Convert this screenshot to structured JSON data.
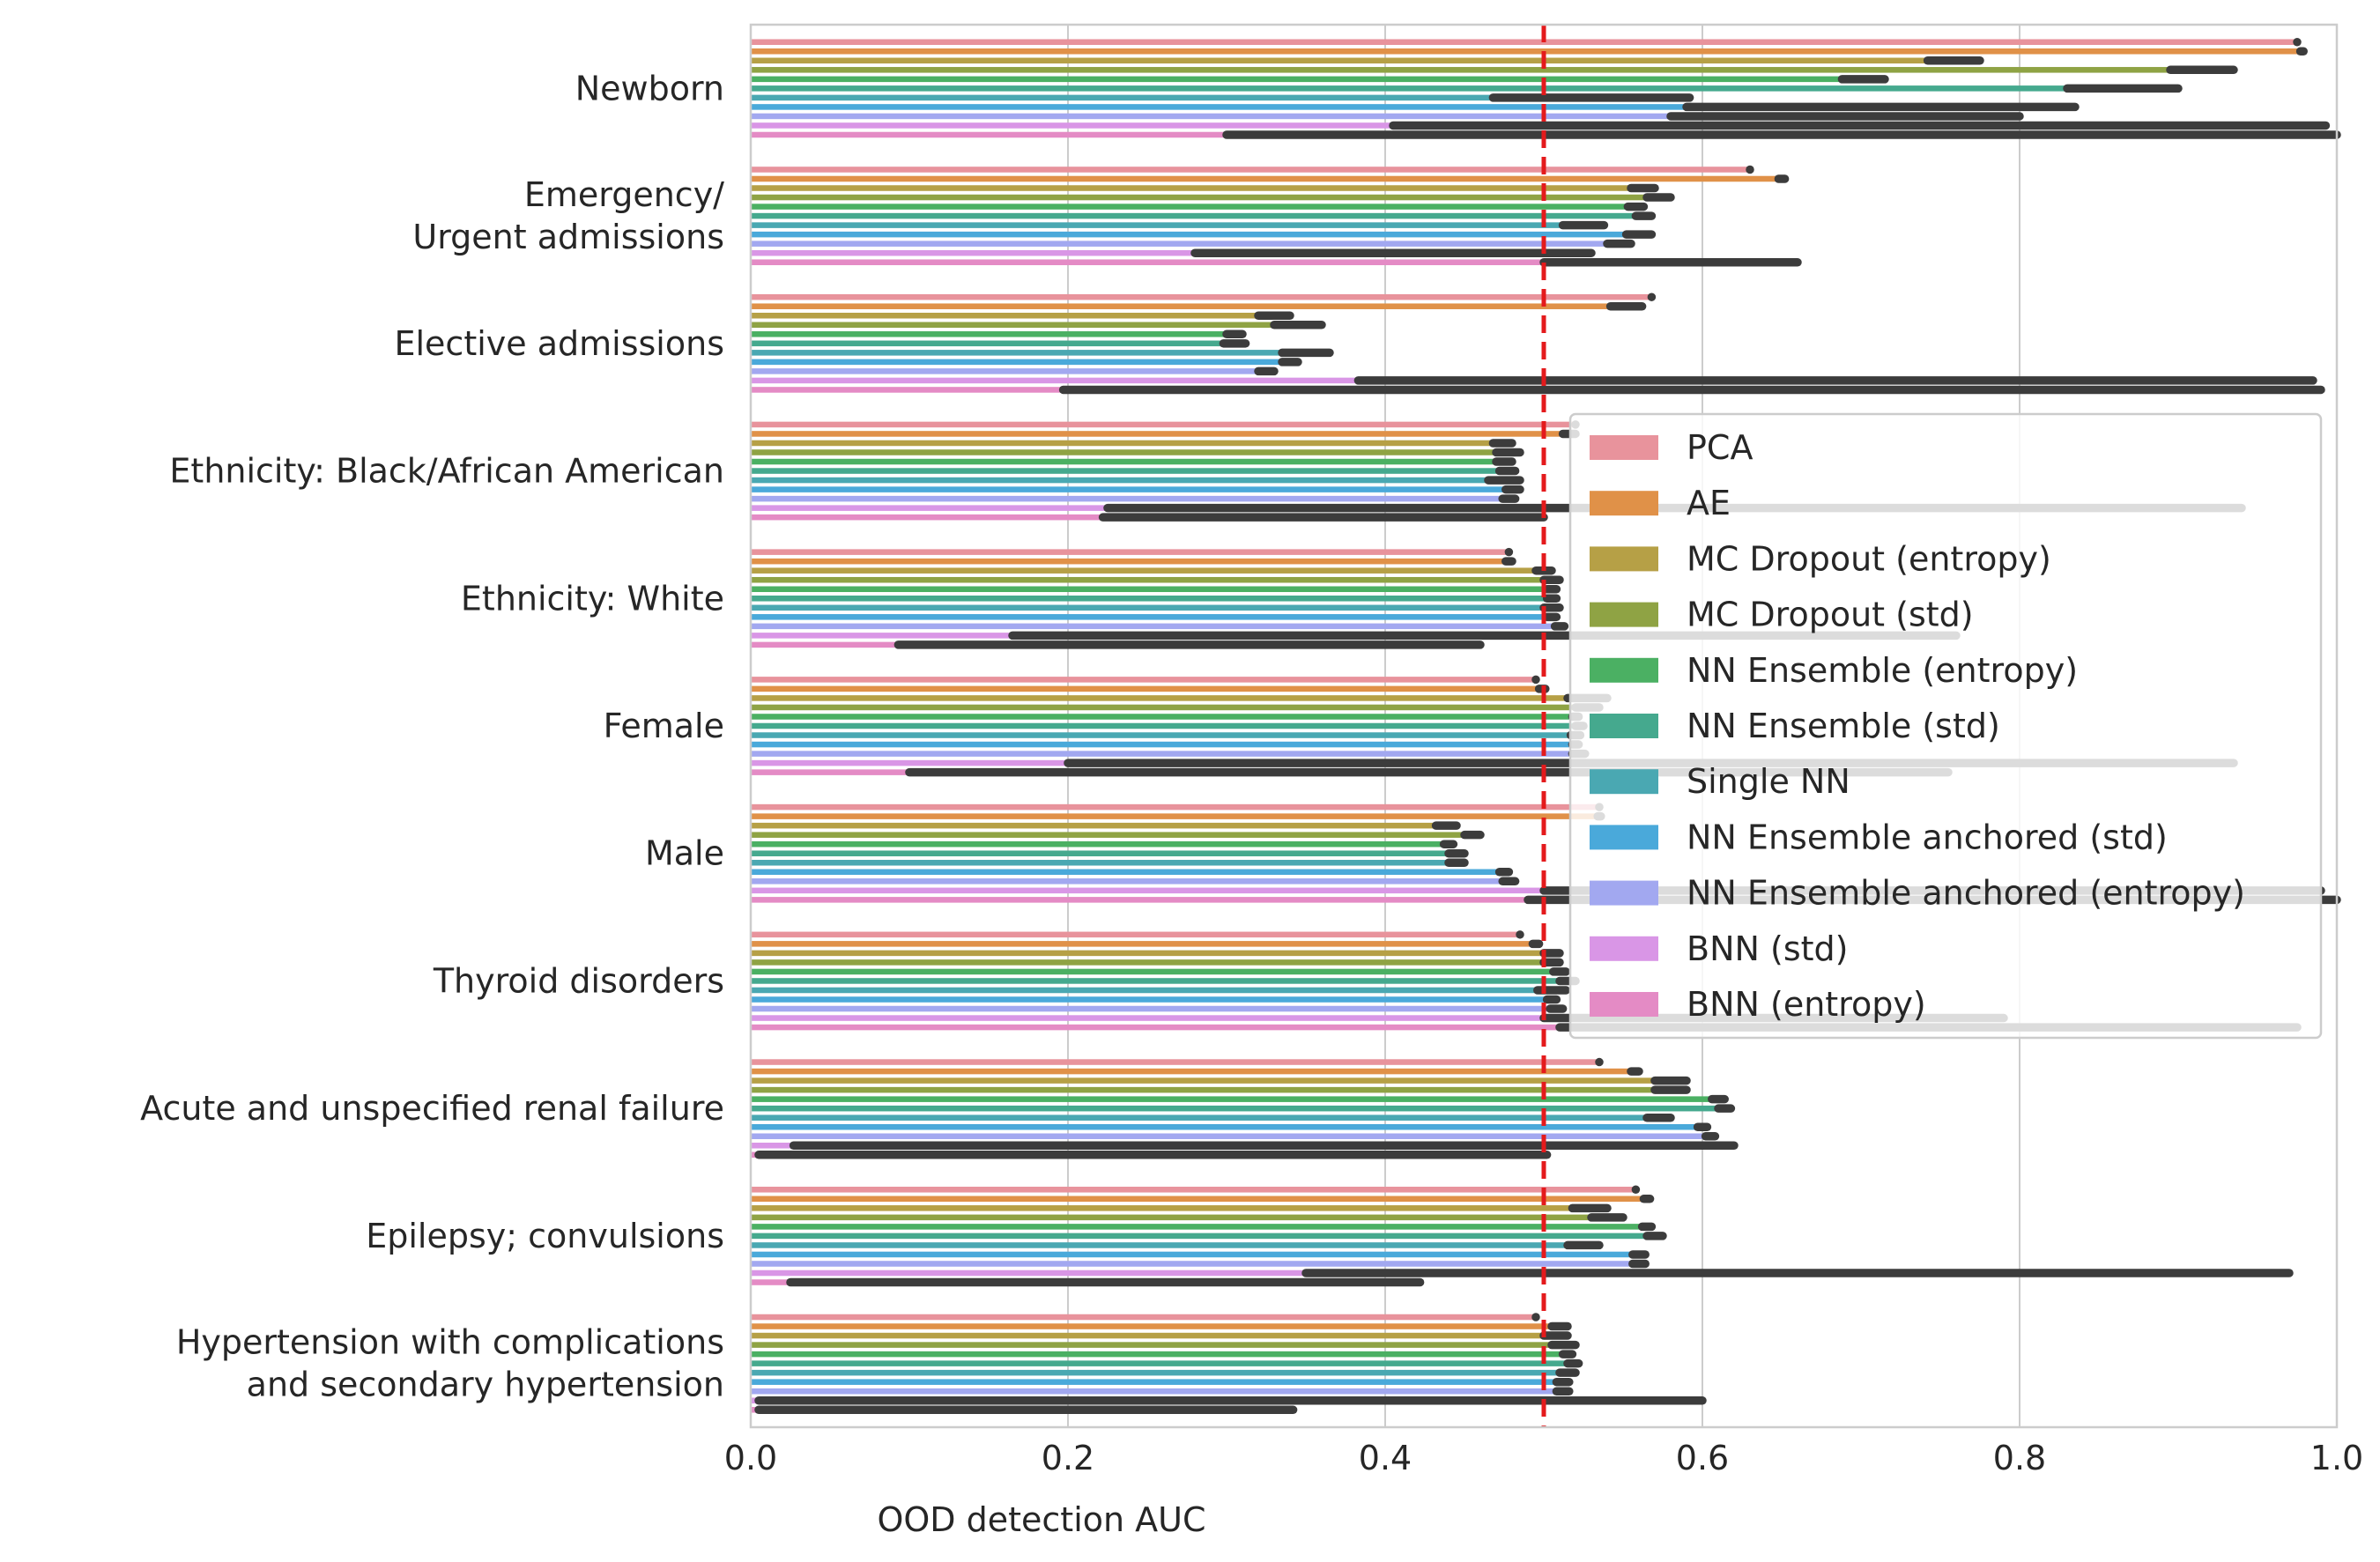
{
  "chart_data": {
    "type": "bar",
    "orientation": "horizontal",
    "xlabel": "OOD detection AUC",
    "ylabel": "",
    "title": "",
    "xlim": [
      0.0,
      1.0
    ],
    "xticks": [
      "0.0",
      "0.2",
      "0.4",
      "0.6",
      "0.8",
      "1.0"
    ],
    "grid": true,
    "legend_position": "right",
    "reference_line": {
      "x": 0.5,
      "color": "#e41a1c",
      "style": "dashed"
    },
    "categories": [
      [
        "Newborn"
      ],
      [
        "Emergency/",
        "Urgent admissions"
      ],
      [
        "Elective admissions"
      ],
      [
        "Ethnicity: Black/African American"
      ],
      [
        "Ethnicity: White"
      ],
      [
        "Female"
      ],
      [
        "Male"
      ],
      [
        "Thyroid disorders"
      ],
      [
        "Acute and unspecified renal failure"
      ],
      [
        "Epilepsy; convulsions"
      ],
      [
        "Hypertension with complications ",
        "and secondary hypertension"
      ]
    ],
    "series": [
      {
        "name": "PCA",
        "color": "#e8939c",
        "values": [
          0.975,
          0.63,
          0.568,
          0.52,
          0.478,
          0.495,
          0.535,
          0.485,
          0.535,
          0.558,
          0.495
        ],
        "err": [
          [
            0.975,
            0.975
          ],
          [
            0.63,
            0.63
          ],
          [
            0.568,
            0.568
          ],
          [
            0.52,
            0.52
          ],
          [
            0.478,
            0.478
          ],
          [
            0.495,
            0.495
          ],
          [
            0.535,
            0.535
          ],
          [
            0.485,
            0.485
          ],
          [
            0.535,
            0.535
          ],
          [
            0.558,
            0.558
          ],
          [
            0.495,
            0.495
          ]
        ]
      },
      {
        "name": "AE",
        "color": "#e09148",
        "values": [
          0.975,
          0.648,
          0.542,
          0.512,
          0.478,
          0.5,
          0.535,
          0.495,
          0.558,
          0.565,
          0.51
        ],
        "err": [
          [
            0.977,
            0.979
          ],
          [
            0.648,
            0.652
          ],
          [
            0.542,
            0.562
          ],
          [
            0.512,
            0.52
          ],
          [
            0.476,
            0.48
          ],
          [
            0.497,
            0.501
          ],
          [
            0.534,
            0.536
          ],
          [
            0.493,
            0.497
          ],
          [
            0.555,
            0.56
          ],
          [
            0.563,
            0.567
          ],
          [
            0.505,
            0.515
          ]
        ]
      },
      {
        "name": "MC Dropout (entropy)",
        "color": "#b6a046",
        "values": [
          0.76,
          0.565,
          0.33,
          0.475,
          0.5,
          0.525,
          0.445,
          0.505,
          0.578,
          0.535,
          0.508
        ],
        "err": [
          [
            0.742,
            0.775
          ],
          [
            0.555,
            0.57
          ],
          [
            0.32,
            0.34
          ],
          [
            0.468,
            0.48
          ],
          [
            0.495,
            0.505
          ],
          [
            0.515,
            0.54
          ],
          [
            0.432,
            0.445
          ],
          [
            0.5,
            0.51
          ],
          [
            0.57,
            0.59
          ],
          [
            0.518,
            0.54
          ],
          [
            0.5,
            0.515
          ]
        ]
      },
      {
        "name": "MC Dropout (std)",
        "color": "#8fa344",
        "values": [
          0.895,
          0.573,
          0.345,
          0.478,
          0.505,
          0.528,
          0.455,
          0.505,
          0.58,
          0.54,
          0.51
        ],
        "err": [
          [
            0.895,
            0.935
          ],
          [
            0.565,
            0.58
          ],
          [
            0.33,
            0.36
          ],
          [
            0.47,
            0.485
          ],
          [
            0.5,
            0.51
          ],
          [
            0.52,
            0.535
          ],
          [
            0.45,
            0.46
          ],
          [
            0.5,
            0.51
          ],
          [
            0.57,
            0.59
          ],
          [
            0.53,
            0.55
          ],
          [
            0.505,
            0.52
          ]
        ]
      },
      {
        "name": "NN Ensemble (entropy)",
        "color": "#4bb063",
        "values": [
          0.7,
          0.558,
          0.305,
          0.475,
          0.505,
          0.52,
          0.44,
          0.51,
          0.61,
          0.565,
          0.515
        ],
        "err": [
          [
            0.688,
            0.715
          ],
          [
            0.553,
            0.563
          ],
          [
            0.3,
            0.31
          ],
          [
            0.47,
            0.48
          ],
          [
            0.502,
            0.508
          ],
          [
            0.518,
            0.522
          ],
          [
            0.437,
            0.443
          ],
          [
            0.506,
            0.514
          ],
          [
            0.606,
            0.614
          ],
          [
            0.562,
            0.568
          ],
          [
            0.512,
            0.518
          ]
        ]
      },
      {
        "name": "NN Ensemble (std)",
        "color": "#45a98e",
        "values": [
          0.83,
          0.565,
          0.305,
          0.478,
          0.505,
          0.522,
          0.445,
          0.515,
          0.615,
          0.57,
          0.518
        ],
        "err": [
          [
            0.83,
            0.9
          ],
          [
            0.558,
            0.568
          ],
          [
            0.298,
            0.312
          ],
          [
            0.472,
            0.482
          ],
          [
            0.502,
            0.508
          ],
          [
            0.52,
            0.525
          ],
          [
            0.44,
            0.45
          ],
          [
            0.51,
            0.52
          ],
          [
            0.61,
            0.618
          ],
          [
            0.565,
            0.575
          ],
          [
            0.515,
            0.522
          ]
        ]
      },
      {
        "name": "Single NN",
        "color": "#4aa8b2",
        "values": [
          0.58,
          0.525,
          0.35,
          0.475,
          0.505,
          0.52,
          0.445,
          0.505,
          0.572,
          0.525,
          0.515
        ],
        "err": [
          [
            0.468,
            0.592
          ],
          [
            0.512,
            0.538
          ],
          [
            0.335,
            0.365
          ],
          [
            0.465,
            0.485
          ],
          [
            0.5,
            0.51
          ],
          [
            0.517,
            0.523
          ],
          [
            0.44,
            0.45
          ],
          [
            0.496,
            0.514
          ],
          [
            0.565,
            0.58
          ],
          [
            0.515,
            0.535
          ],
          [
            0.51,
            0.52
          ]
        ]
      },
      {
        "name": "NN Ensemble anchored (std)",
        "color": "#4aa9da",
        "values": [
          0.835,
          0.56,
          0.34,
          0.48,
          0.505,
          0.52,
          0.475,
          0.505,
          0.6,
          0.56,
          0.512
        ],
        "err": [
          [
            0.59,
            0.835
          ],
          [
            0.552,
            0.568
          ],
          [
            0.335,
            0.345
          ],
          [
            0.476,
            0.485
          ],
          [
            0.502,
            0.508
          ],
          [
            0.518,
            0.522
          ],
          [
            0.472,
            0.478
          ],
          [
            0.502,
            0.508
          ],
          [
            0.597,
            0.603
          ],
          [
            0.556,
            0.564
          ],
          [
            0.508,
            0.516
          ]
        ]
      },
      {
        "name": "NN Ensemble anchored (entropy)",
        "color": "#a2a8f0",
        "values": [
          0.8,
          0.548,
          0.325,
          0.478,
          0.51,
          0.522,
          0.478,
          0.508,
          0.605,
          0.56,
          0.512
        ],
        "err": [
          [
            0.58,
            0.8
          ],
          [
            0.54,
            0.555
          ],
          [
            0.32,
            0.33
          ],
          [
            0.474,
            0.482
          ],
          [
            0.507,
            0.513
          ],
          [
            0.518,
            0.526
          ],
          [
            0.474,
            0.482
          ],
          [
            0.504,
            0.512
          ],
          [
            0.602,
            0.608
          ],
          [
            0.556,
            0.564
          ],
          [
            0.508,
            0.516
          ]
        ]
      },
      {
        "name": "BNN (std)",
        "color": "#d996e6",
        "values": [
          0.405,
          0.28,
          0.383,
          0.225,
          0.165,
          0.2,
          0.53,
          0.525,
          0.027,
          0.35,
          0.005
        ],
        "err": [
          [
            0.405,
            0.993
          ],
          [
            0.28,
            0.53
          ],
          [
            0.383,
            0.985
          ],
          [
            0.225,
            0.94
          ],
          [
            0.165,
            0.76
          ],
          [
            0.2,
            0.935
          ],
          [
            0.5,
            0.99
          ],
          [
            0.5,
            0.79
          ],
          [
            0.027,
            0.62
          ],
          [
            0.35,
            0.97
          ],
          [
            0.005,
            0.6
          ]
        ]
      },
      {
        "name": "BNN (entropy)",
        "color": "#e48bc5",
        "values": [
          0.3,
          0.5,
          0.197,
          0.225,
          0.093,
          0.1,
          0.49,
          0.535,
          0.005,
          0.025,
          0.005
        ],
        "err": [
          [
            0.3,
            1.0
          ],
          [
            0.5,
            0.66
          ],
          [
            0.197,
            0.99
          ],
          [
            0.222,
            0.5
          ],
          [
            0.093,
            0.46
          ],
          [
            0.1,
            0.755
          ],
          [
            0.49,
            1.0
          ],
          [
            0.51,
            0.975
          ],
          [
            0.005,
            0.502
          ],
          [
            0.025,
            0.422
          ],
          [
            0.005,
            0.342
          ]
        ]
      }
    ]
  }
}
